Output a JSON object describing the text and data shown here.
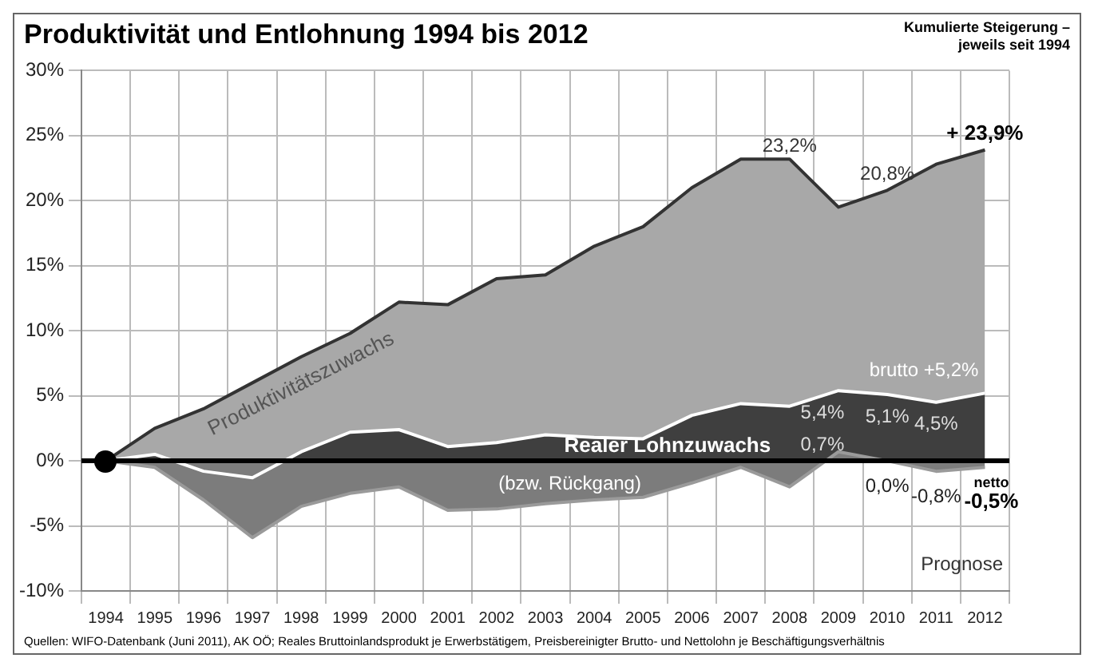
{
  "chart_data": {
    "type": "area",
    "title": "Produktivität und Entlohnung 1994 bis 2012",
    "subtitle": "Kumulierte Steigerung –\njeweils seit 1994",
    "categories": [
      "1994",
      "1995",
      "1996",
      "1997",
      "1998",
      "1999",
      "2000",
      "2001",
      "2002",
      "2003",
      "2004",
      "2005",
      "2006",
      "2007",
      "2008",
      "2009",
      "2010",
      "2011",
      "2012"
    ],
    "series": [
      {
        "name": "Produktivitätszuwachs",
        "color": "#a8a8a8",
        "values": [
          0,
          2.5,
          4,
          6,
          8,
          9.8,
          12.2,
          12,
          14,
          14.3,
          16.5,
          18,
          21,
          23.2,
          23.2,
          19.5,
          20.8,
          22.8,
          23.9
        ]
      },
      {
        "color": "#3f3f3f",
        "values": [
          0,
          0.5,
          -0.8,
          -1.3,
          0.7,
          2.2,
          2.4,
          1.1,
          1.4,
          2,
          1.8,
          1.7,
          3.5,
          4.4,
          4.2,
          5.4,
          5.1,
          4.5,
          5.2
        ]
      },
      {
        "color": "#7c7c7c",
        "values": [
          0,
          -0.5,
          -3,
          -5.9,
          -3.5,
          -2.5,
          -2,
          -3.8,
          -3.7,
          -3.3,
          -3,
          -2.8,
          -1.7,
          -0.5,
          -2,
          0.7,
          0,
          -0.8,
          -0.5
        ]
      }
    ],
    "ylim": [
      -10,
      30
    ],
    "yticks": [
      {
        "value": -10,
        "label": "-10%"
      },
      {
        "value": -5,
        "label": "-5%"
      },
      {
        "value": 0,
        "label": "0%"
      },
      {
        "value": 5,
        "label": "5%"
      },
      {
        "value": 10,
        "label": "10%"
      },
      {
        "value": 15,
        "label": "15%"
      },
      {
        "value": 20,
        "label": "20%"
      },
      {
        "value": 25,
        "label": "25%"
      },
      {
        "value": 30,
        "label": "30%"
      }
    ],
    "grid": true,
    "legend": false,
    "ref_lines": [
      {
        "axis": "y",
        "value": 0,
        "color": "#000000"
      }
    ],
    "annotations": [
      {
        "text": "23,2%",
        "x": "2008",
        "y": 23.2
      },
      {
        "text": "20,8%",
        "x": "2010",
        "y": 20.8
      },
      {
        "text": "+ 23,9%",
        "x": "2012",
        "y": 23.9
      },
      {
        "text": "brutto +5,2%",
        "x": "2012",
        "y": 5.2
      },
      {
        "text": "5,4%",
        "x": "2009",
        "y": 5.4
      },
      {
        "text": "0,7%",
        "x": "2009",
        "y": 0.7
      },
      {
        "text": "5,1%",
        "x": "2010",
        "y": 5.1
      },
      {
        "text": "4,5%",
        "x": "2011",
        "y": 4.5
      },
      {
        "text": "0,0%",
        "x": "2010",
        "y": 0
      },
      {
        "text": "-0,8%",
        "x": "2011",
        "y": -0.8
      },
      {
        "text": "netto -0,5%",
        "x": "2012",
        "y": -0.5
      },
      "Realer Lohnzuwachs (bzw. Rückgang)",
      "Prognose",
      "Quellen: WIFO-Datenbank (Juni 2011), AK OÖ; Reales Bruttoinlandsprodukt je Erwerbstätigem, Preisbereinigter Brutto- und Nettolohn je Beschäftigungsverhältnis"
    ]
  }
}
